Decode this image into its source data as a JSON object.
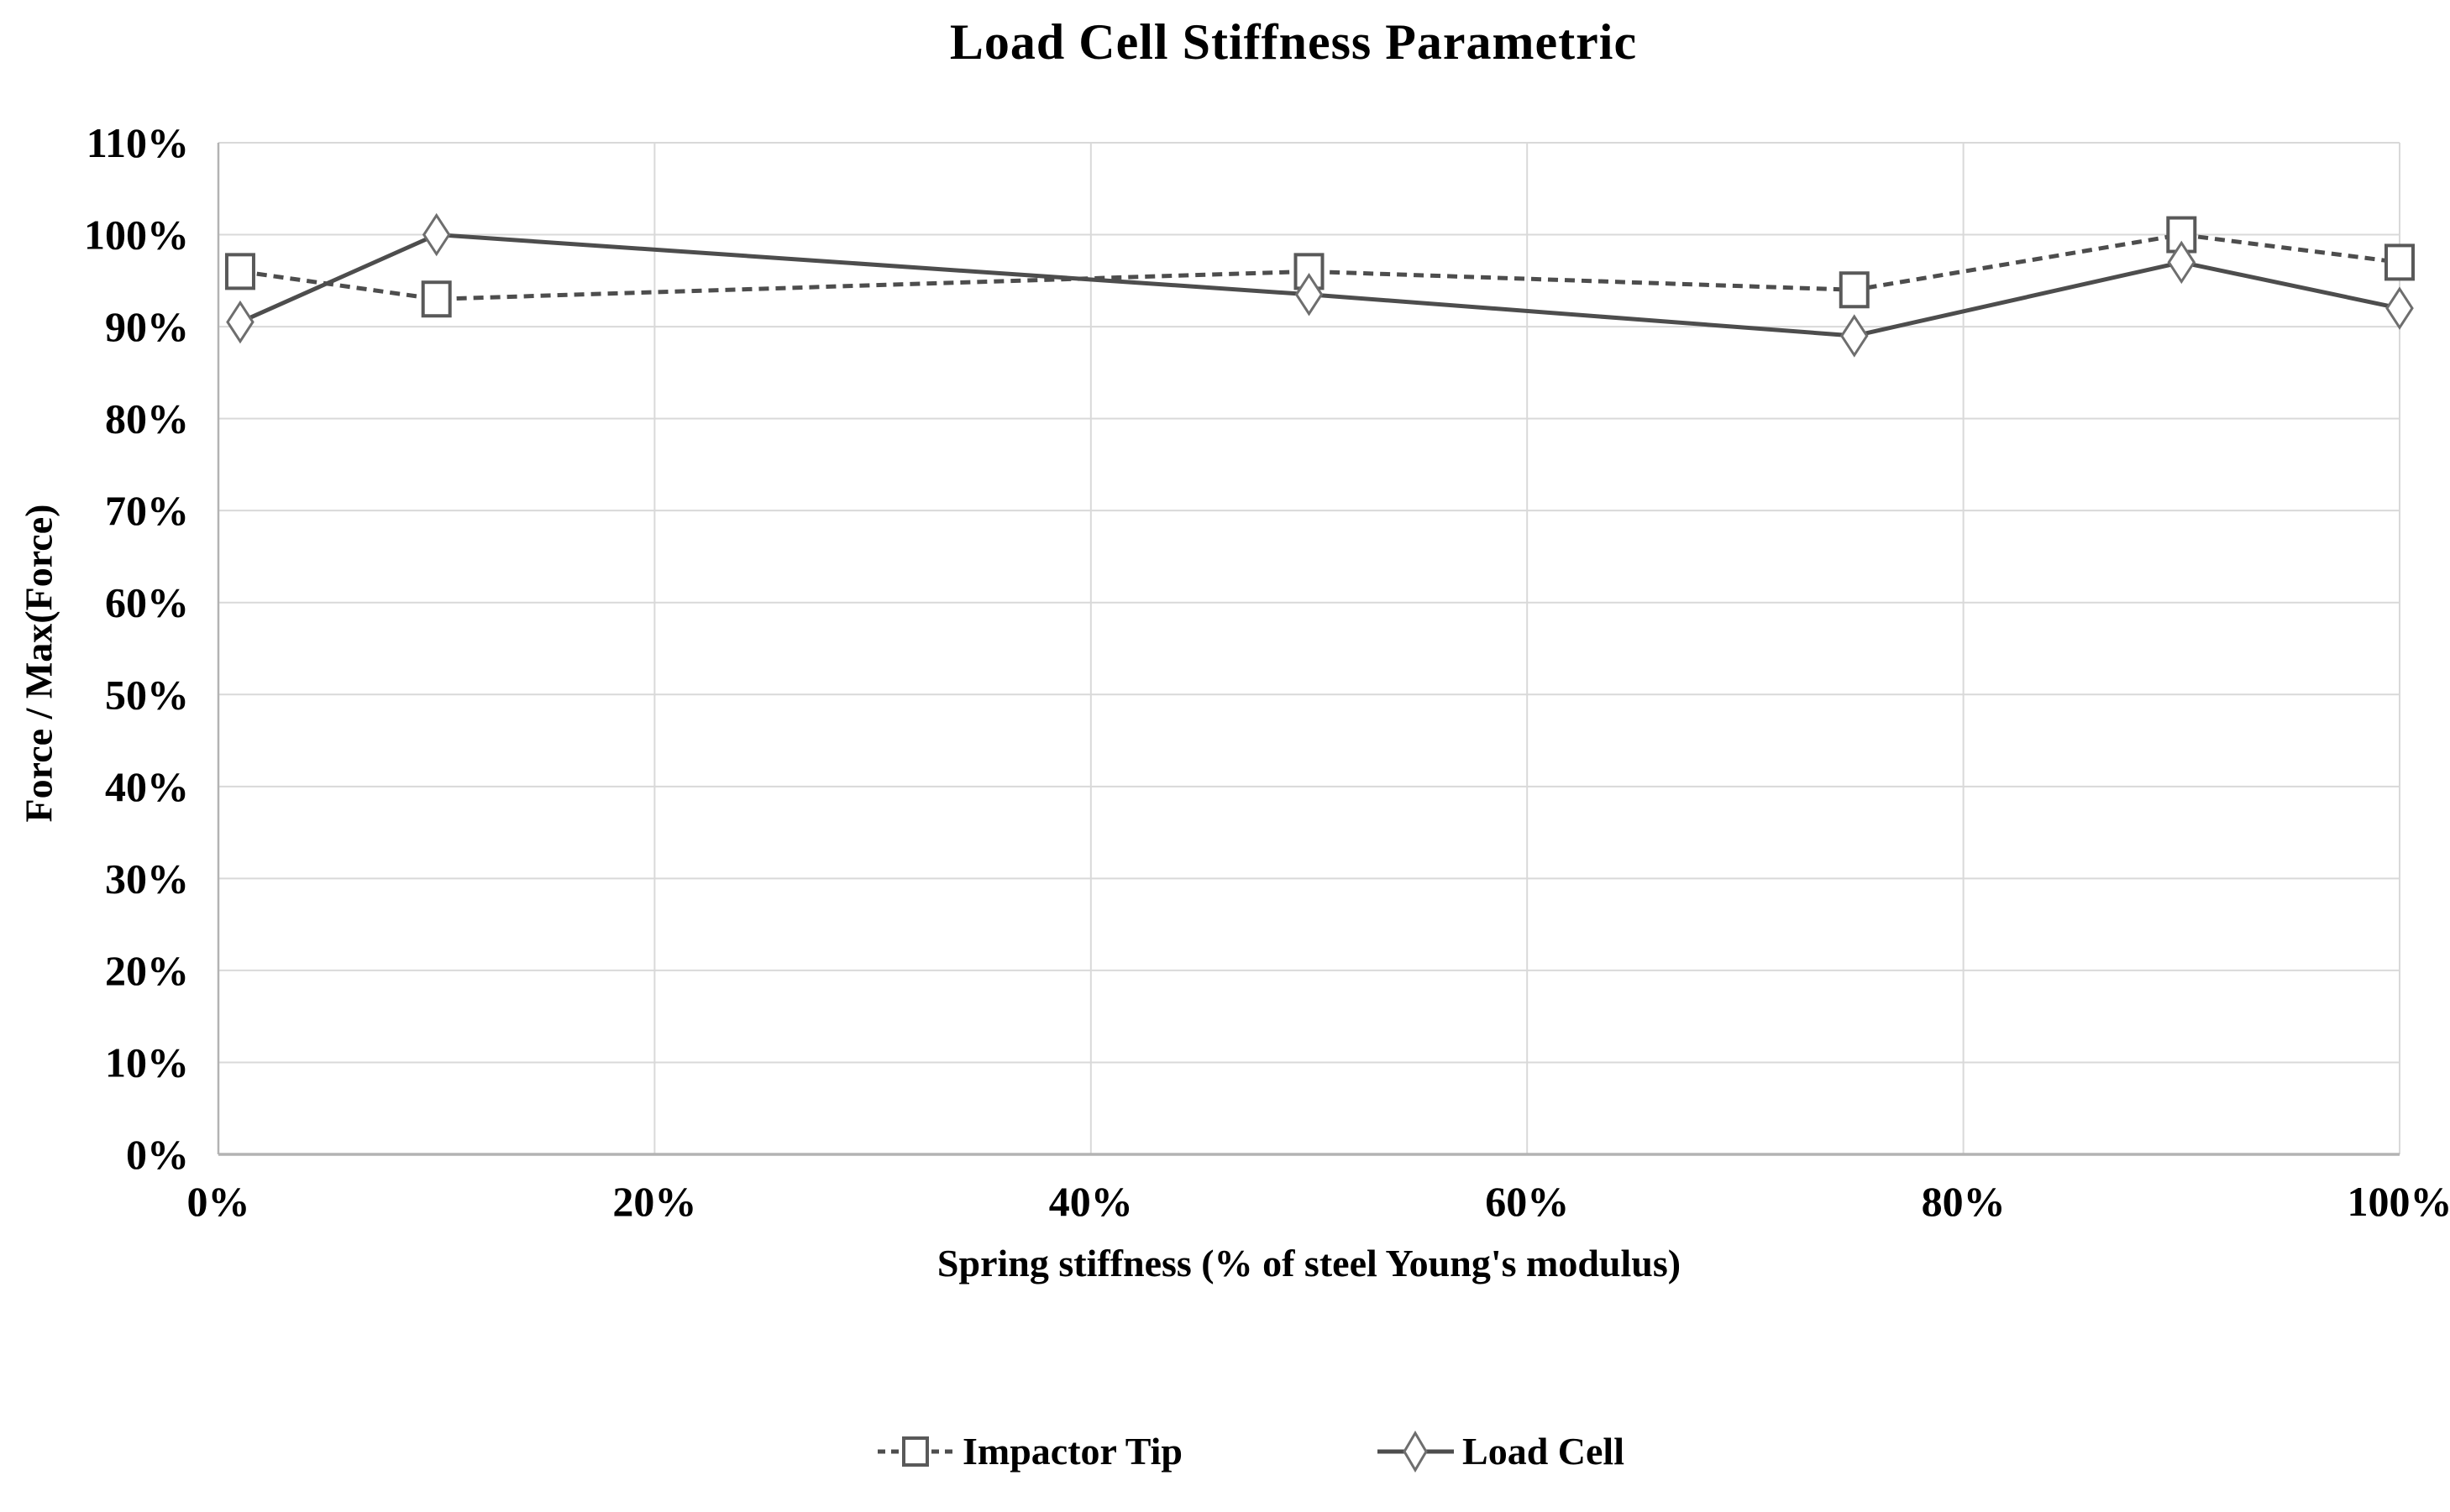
{
  "chart_data": {
    "type": "line",
    "title": "Load Cell Stiffness Parametric",
    "xlabel": "Spring stiffness (% of steel Young's modulus)",
    "ylabel": "Force / Max(Force)",
    "x": [
      1,
      10,
      50,
      75,
      90,
      100
    ],
    "series": [
      {
        "name": "Impactor Tip",
        "values": [
          96,
          93,
          96,
          94,
          100,
          97
        ],
        "line_style": "dashed",
        "marker": "square"
      },
      {
        "name": "Load Cell",
        "values": [
          90.5,
          100,
          93.5,
          89,
          97,
          92
        ],
        "line_style": "solid",
        "marker": "diamond"
      }
    ],
    "xlim": [
      0,
      100
    ],
    "ylim": [
      0,
      110
    ],
    "x_tick_labels": [
      "0%",
      "20%",
      "40%",
      "60%",
      "80%",
      "100%"
    ],
    "x_tick_values": [
      0,
      20,
      40,
      60,
      80,
      100
    ],
    "y_tick_labels": [
      "0%",
      "10%",
      "20%",
      "30%",
      "40%",
      "50%",
      "60%",
      "70%",
      "80%",
      "90%",
      "100%",
      "110%"
    ],
    "y_tick_values": [
      0,
      10,
      20,
      30,
      40,
      50,
      60,
      70,
      80,
      90,
      100,
      110
    ],
    "grid": true,
    "legend_position": "bottom",
    "colors": {
      "series_line": "#4d4d4d",
      "square_stroke": "#595959",
      "diamond_stroke": "#6e6e6e",
      "marker_fill": "#ffffff",
      "grid": "#d9d9d9",
      "axis": "#b3b3b3",
      "text": "#000000",
      "background": "#ffffff"
    }
  }
}
